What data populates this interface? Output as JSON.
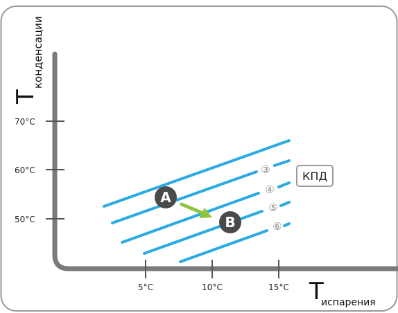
{
  "y_axis": {
    "symbol": "T",
    "subscript": "конденсации",
    "ticks": [
      "70°C",
      "60°C",
      "50°C"
    ]
  },
  "x_axis": {
    "symbol": "T",
    "subscript": "испарения",
    "ticks": [
      "5°C",
      "10°C",
      "15°C"
    ]
  },
  "point_a": "A",
  "point_b": "B",
  "efficiency_labels": [
    "③",
    "④",
    "⑤",
    "⑥"
  ],
  "kpd_box": "КПД",
  "colors": {
    "line": "#29abe2",
    "arrow": "#8cc63f",
    "axis": "#7a7a7a",
    "marker": "#4a4a4a",
    "frame": "#9a9a9a"
  }
}
